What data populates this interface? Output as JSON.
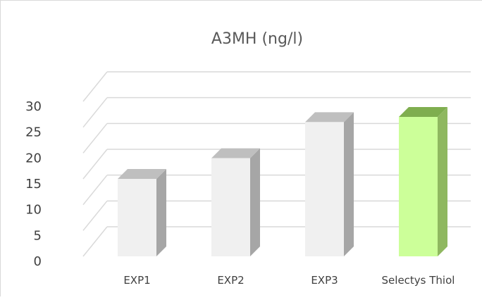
{
  "chart_data": {
    "type": "bar",
    "title": "A3MH (ng/l)",
    "categories": [
      "EXP1",
      "EXP2",
      "EXP3",
      "Selectys Thiol"
    ],
    "values": [
      15,
      19,
      26,
      27
    ],
    "ylim": [
      0,
      30
    ],
    "yticks": [
      0,
      5,
      10,
      15,
      20,
      25,
      30
    ],
    "grid": true,
    "style": "3d-column",
    "colors": {
      "default_front": "#f0f0f0",
      "default_side": "#a6a6a6",
      "default_top": "#bfbfbf",
      "highlight_front": "#ccff99",
      "highlight_side": "#8fb860",
      "highlight_top": "#7fae4f",
      "grid": "#d9d9d9",
      "text": "#404040"
    },
    "highlight_index": 3
  }
}
